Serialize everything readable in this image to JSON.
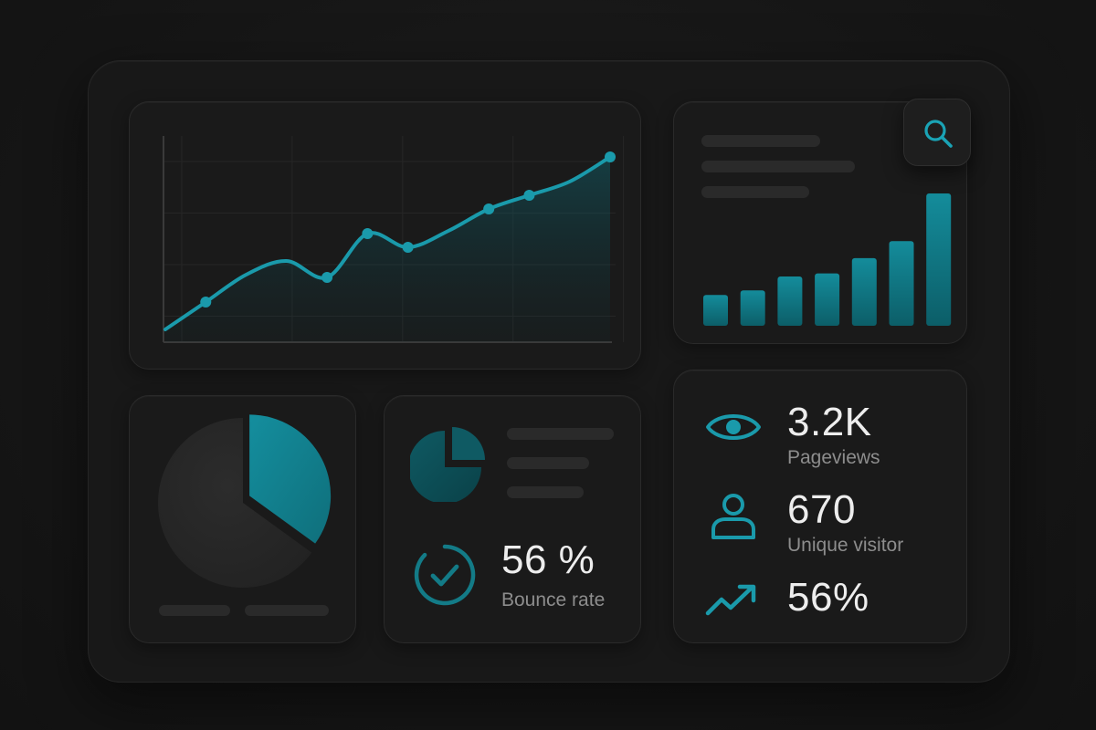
{
  "colors": {
    "accent": "#1a9aab",
    "accent_dark": "#0f6f7b",
    "background": "#161616",
    "card": "#1a1a1a",
    "placeholder": "#2a2a2a",
    "text_primary": "#ededed",
    "text_secondary": "#8d8d8d"
  },
  "chart_data": [
    {
      "type": "line",
      "area_fill": true,
      "grid": true,
      "y": [
        0,
        10,
        20,
        25,
        19,
        35,
        30,
        36,
        44,
        49,
        54,
        63
      ],
      "marked_points": [
        1,
        4,
        5,
        6,
        8,
        9,
        11
      ]
    },
    {
      "type": "bar",
      "values": [
        20,
        23,
        32,
        34,
        44,
        55,
        86
      ],
      "grid": false
    },
    {
      "type": "pie",
      "values": [
        35,
        65
      ],
      "highlighted_slice": 0
    }
  ],
  "toolbar": {
    "search_icon": "search-icon"
  },
  "bounce": {
    "icon": "check-circle-icon",
    "value": "56 %",
    "label": "Bounce rate"
  },
  "stats": {
    "pageviews": {
      "icon": "eye-icon",
      "value": "3.2K",
      "label": "Pageviews"
    },
    "visitors": {
      "icon": "user-icon",
      "value": "670",
      "label": "Unique visitor"
    },
    "growth": {
      "icon": "trend-up-icon",
      "value": "56%"
    }
  }
}
